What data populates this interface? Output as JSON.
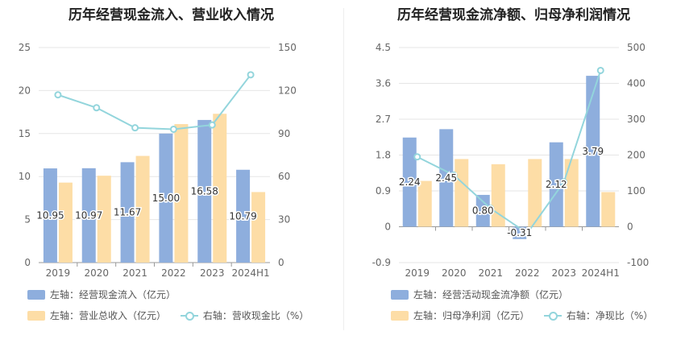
{
  "chart_data": [
    {
      "type": "bar",
      "title": "历年经营现金流入、营业收入情况",
      "categories": [
        "2019",
        "2020",
        "2021",
        "2022",
        "2023",
        "2024H1"
      ],
      "left_axis": {
        "min": 0,
        "max": 25,
        "ticks": [
          "0",
          "5",
          "10",
          "15",
          "20",
          "25"
        ]
      },
      "right_axis": {
        "min": 0,
        "max": 150,
        "ticks": [
          "0",
          "30",
          "60",
          "90",
          "120",
          "150"
        ]
      },
      "series": [
        {
          "name": "左轴：经营现金流入（亿元）",
          "axis": "left",
          "kind": "bar",
          "color": "#8eaedd",
          "values": [
            10.95,
            10.97,
            11.67,
            15.0,
            16.58,
            10.79
          ],
          "labels": [
            "10.95",
            "10.97",
            "11.67",
            "15.00",
            "16.58",
            "10.79"
          ]
        },
        {
          "name": "左轴：营业总收入（亿元）",
          "axis": "left",
          "kind": "bar",
          "color": "#fddda6",
          "values": [
            9.3,
            10.1,
            12.4,
            16.1,
            17.3,
            8.2
          ]
        },
        {
          "name": "右轴：营收现金比（%）",
          "axis": "right",
          "kind": "line",
          "color": "#93d5dc",
          "values": [
            117,
            108,
            94,
            93,
            96,
            131
          ]
        }
      ],
      "grid": true,
      "legend_position": "bottom"
    },
    {
      "type": "bar",
      "title": "历年经营现金流净额、归母净利润情况",
      "categories": [
        "2019",
        "2020",
        "2021",
        "2022",
        "2023",
        "2024H1"
      ],
      "left_axis": {
        "min": -0.9,
        "max": 4.5,
        "ticks": [
          "-0.9",
          "0",
          "0.9",
          "1.8",
          "2.7",
          "3.6",
          "4.5"
        ]
      },
      "right_axis": {
        "min": -100,
        "max": 500,
        "ticks": [
          "-100",
          "0",
          "100",
          "200",
          "300",
          "400",
          "500"
        ]
      },
      "series": [
        {
          "name": "左轴：经营活动现金流净额（亿元）",
          "axis": "left",
          "kind": "bar",
          "color": "#8eaedd",
          "values": [
            2.24,
            2.45,
            0.8,
            -0.31,
            2.12,
            3.79
          ],
          "labels": [
            "2.24",
            "2.45",
            "0.80",
            "-0.31",
            "2.12",
            "3.79"
          ]
        },
        {
          "name": "左轴：归母净利润（亿元）",
          "axis": "left",
          "kind": "bar",
          "color": "#fddda6",
          "values": [
            1.15,
            1.7,
            1.57,
            1.7,
            1.7,
            0.87
          ]
        },
        {
          "name": "右轴：净现比（%）",
          "axis": "right",
          "kind": "line",
          "color": "#93d5dc",
          "values": [
            195,
            144,
            51,
            -18,
            125,
            436
          ]
        }
      ],
      "grid": true,
      "legend_position": "bottom"
    }
  ]
}
